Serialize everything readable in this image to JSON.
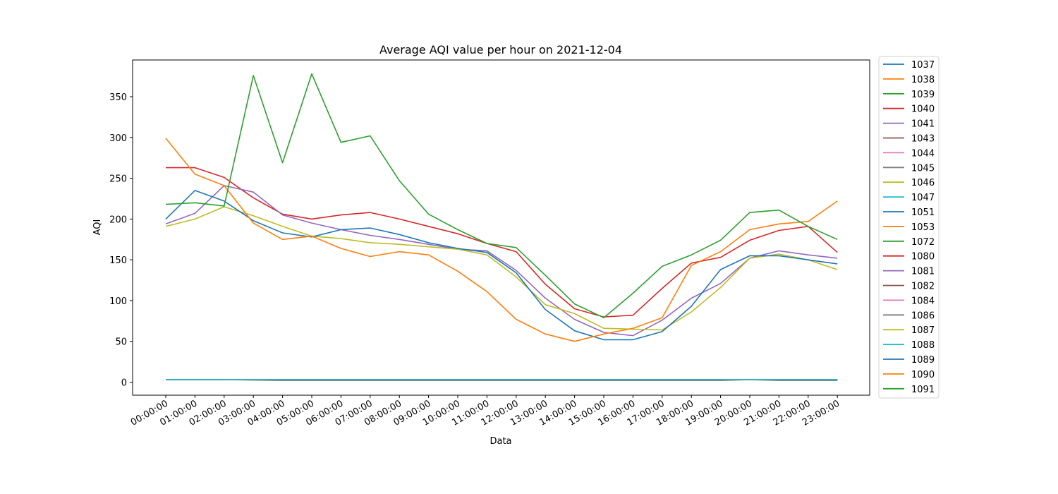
{
  "chart_data": {
    "type": "line",
    "title": "Average AQI value per hour on 2021-12-04",
    "xlabel": "Data",
    "ylabel": "AQI",
    "ylim": [
      -16,
      395
    ],
    "yticks": [
      0,
      50,
      100,
      150,
      200,
      250,
      300,
      350
    ],
    "grid": false,
    "legend_position": "outside-right",
    "categories": [
      "00:00:00",
      "01:00:00",
      "02:00:00",
      "03:00:00",
      "04:00:00",
      "05:00:00",
      "06:00:00",
      "07:00:00",
      "08:00:00",
      "09:00:00",
      "10:00:00",
      "11:00:00",
      "12:00:00",
      "13:00:00",
      "14:00:00",
      "15:00:00",
      "16:00:00",
      "17:00:00",
      "18:00:00",
      "19:00:00",
      "20:00:00",
      "21:00:00",
      "22:00:00",
      "23:00:00"
    ],
    "series": [
      {
        "name": "1037",
        "color": "#1f77b4",
        "values": [
          3,
          3,
          3,
          3,
          3,
          3,
          3,
          3,
          3,
          3,
          3,
          3,
          3,
          3,
          3,
          3,
          3,
          3,
          3,
          3,
          3,
          3,
          3,
          3
        ]
      },
      {
        "name": "1038",
        "color": "#ff7f0e",
        "values": [
          3,
          3,
          3,
          3,
          3,
          3,
          3,
          3,
          3,
          3,
          3,
          3,
          3,
          3,
          3,
          3,
          3,
          3,
          3,
          3,
          3,
          3,
          3,
          3
        ]
      },
      {
        "name": "1039",
        "color": "#2ca02c",
        "values": [
          3,
          3,
          3,
          3,
          3,
          3,
          3,
          3,
          3,
          3,
          3,
          3,
          3,
          3,
          3,
          3,
          3,
          3,
          3,
          3,
          3,
          3,
          3,
          3
        ]
      },
      {
        "name": "1040",
        "color": "#d62728",
        "values": [
          3,
          3,
          3,
          3,
          3,
          3,
          3,
          3,
          3,
          3,
          3,
          3,
          3,
          3,
          3,
          3,
          3,
          3,
          3,
          3,
          3,
          3,
          3,
          3
        ]
      },
      {
        "name": "1041",
        "color": "#9467bd",
        "values": [
          3,
          3,
          3,
          3,
          3,
          3,
          3,
          3,
          3,
          3,
          3,
          3,
          3,
          3,
          3,
          3,
          3,
          3,
          3,
          3,
          3,
          3,
          3,
          3
        ]
      },
      {
        "name": "1043",
        "color": "#8c564b",
        "values": [
          3,
          3,
          3,
          3,
          3,
          3,
          3,
          3,
          3,
          3,
          3,
          3,
          3,
          3,
          3,
          3,
          3,
          3,
          3,
          3,
          3,
          3,
          3,
          3
        ]
      },
      {
        "name": "1044",
        "color": "#e377c2",
        "values": [
          3,
          3,
          3,
          3,
          3,
          3,
          3,
          3,
          3,
          3,
          3,
          3,
          3,
          3,
          3,
          3,
          3,
          3,
          3,
          3,
          3,
          3,
          3,
          3
        ]
      },
      {
        "name": "1045",
        "color": "#7f7f7f",
        "values": [
          3,
          3,
          3,
          3,
          3,
          3,
          3,
          3,
          3,
          3,
          3,
          3,
          3,
          3,
          3,
          3,
          3,
          3,
          3,
          3,
          3,
          3,
          3,
          3
        ]
      },
      {
        "name": "1046",
        "color": "#bcbd22",
        "values": [
          3,
          3,
          3,
          3,
          3,
          3,
          3,
          3,
          3,
          3,
          3,
          3,
          3,
          3,
          3,
          3,
          3,
          3,
          3,
          3,
          3,
          3,
          3,
          3
        ]
      },
      {
        "name": "1047",
        "color": "#17becf",
        "values": [
          3,
          3,
          3,
          3,
          3,
          3,
          3,
          3,
          3,
          3,
          3,
          3,
          3,
          3,
          3,
          3,
          3,
          3,
          3,
          3,
          3,
          3,
          3,
          3
        ]
      },
      {
        "name": "1051",
        "color": "#1f77b4",
        "values": [
          3,
          3,
          3,
          3,
          3,
          3,
          3,
          3,
          3,
          3,
          3,
          3,
          3,
          3,
          3,
          3,
          3,
          3,
          3,
          3,
          3,
          3,
          3,
          3
        ]
      },
      {
        "name": "1053",
        "color": "#ff7f0e",
        "values": [
          3,
          3,
          3,
          3,
          3,
          3,
          3,
          3,
          3,
          3,
          3,
          3,
          3,
          3,
          3,
          3,
          3,
          3,
          3,
          3,
          3,
          3,
          3,
          3
        ]
      },
      {
        "name": "1072",
        "color": "#2ca02c",
        "values": [
          3,
          3,
          3,
          3,
          3,
          3,
          3,
          3,
          3,
          3,
          3,
          3,
          3,
          3,
          3,
          3,
          3,
          3,
          3,
          3,
          3,
          3,
          3,
          3
        ]
      },
      {
        "name": "1080",
        "color": "#d62728",
        "values": [
          263,
          263,
          251,
          226,
          206,
          200,
          205,
          208,
          200,
          191,
          182,
          170,
          160,
          120,
          90,
          80,
          82,
          115,
          146,
          153,
          174,
          186,
          191,
          159
        ]
      },
      {
        "name": "1081",
        "color": "#9467bd",
        "values": [
          194,
          207,
          241,
          233,
          205,
          195,
          187,
          180,
          175,
          169,
          163,
          161,
          137,
          103,
          77,
          61,
          57,
          76,
          103,
          121,
          152,
          161,
          156,
          152
        ]
      },
      {
        "name": "1082",
        "color": "#8c564b",
        "values": [
          3,
          3,
          3,
          3,
          3,
          3,
          3,
          3,
          3,
          3,
          3,
          3,
          3,
          3,
          3,
          3,
          3,
          3,
          3,
          3,
          3,
          3,
          3,
          3
        ]
      },
      {
        "name": "1084",
        "color": "#e377c2",
        "values": [
          3,
          3,
          3,
          3,
          3,
          3,
          3,
          3,
          3,
          3,
          3,
          3,
          3,
          3,
          3,
          3,
          3,
          3,
          3,
          3,
          3,
          3,
          3,
          3
        ]
      },
      {
        "name": "1086",
        "color": "#7f7f7f",
        "values": [
          3,
          3,
          3,
          2.5,
          2,
          2,
          2,
          2,
          2,
          2,
          2,
          2,
          2,
          2,
          2,
          2,
          2,
          2,
          2,
          2,
          3,
          2,
          2,
          2
        ]
      },
      {
        "name": "1087",
        "color": "#bcbd22",
        "values": [
          191,
          200,
          215,
          204,
          191,
          179,
          176,
          171,
          169,
          166,
          163,
          156,
          129,
          95,
          84,
          66,
          65,
          64,
          86,
          116,
          152,
          157,
          150,
          138
        ]
      },
      {
        "name": "1088",
        "color": "#17becf",
        "values": [
          3,
          3,
          3,
          3,
          3,
          3,
          3,
          3,
          3,
          3,
          3,
          3,
          3,
          3,
          3,
          3,
          3,
          3,
          3,
          3,
          3,
          3,
          3,
          3
        ]
      },
      {
        "name": "1089",
        "color": "#1f77b4",
        "values": [
          200,
          235,
          222,
          198,
          183,
          178,
          187,
          189,
          181,
          171,
          164,
          159,
          134,
          89,
          63,
          52,
          52,
          62,
          93,
          138,
          155,
          155,
          150,
          145
        ]
      },
      {
        "name": "1090",
        "color": "#ff7f0e",
        "values": [
          299,
          255,
          241,
          195,
          175,
          179,
          164,
          154,
          160,
          156,
          136,
          111,
          77,
          59,
          50,
          59,
          66,
          79,
          143,
          160,
          187,
          194,
          197,
          222
        ]
      },
      {
        "name": "1091",
        "color": "#2ca02c",
        "values": [
          218,
          220,
          216,
          376,
          269,
          378,
          294,
          302,
          247,
          206,
          187,
          170,
          165,
          131,
          96,
          79,
          109,
          142,
          156,
          174,
          208,
          211,
          191,
          175
        ]
      }
    ]
  }
}
